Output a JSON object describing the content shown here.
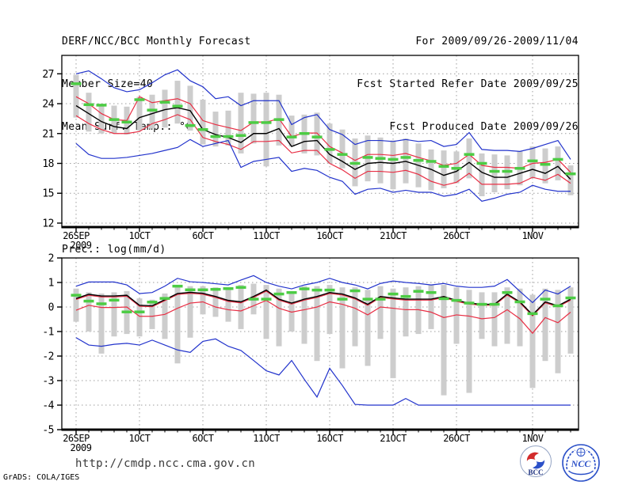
{
  "header": {
    "title": "DERF/NCC/BCC Monthly Forecast",
    "member_size": "Member Size=40",
    "var_label": "Mean Surf. Temp.: °C",
    "valid_range": "For 2009/09/26-2009/11/04",
    "refer_date": "Fcst Started Refer Date 2009/09/25",
    "produced_date": "Fcst Produced Date 2009/09/26"
  },
  "footer": {
    "url": "http://cmdp.ncc.cma.gov.cn",
    "credit": "GrADS: COLA/IGES",
    "bcc_label": "BCC",
    "ncc_label": "NCC"
  },
  "colors": {
    "minmax_line": "#2233cc",
    "spread_line": "#e82e44",
    "mean_line": "#000000",
    "obs_dash": "#4ccc44",
    "spread_bar": "#cdcdcd",
    "grid": "#9e9e9e"
  },
  "chart_data": [
    {
      "type": "line",
      "title": "Mean Surf. Temp.: °C",
      "panel_title": "",
      "ylim": [
        11.6,
        28.85
      ],
      "yticks": [
        27,
        24,
        21,
        18,
        15,
        12
      ],
      "grid": "dotted",
      "x_count": 40,
      "x_start_date": "26SEP2009",
      "x_end_date": "4NOV2009",
      "xticks": [
        {
          "i": 0,
          "label": "26SEP",
          "sub": "2009"
        },
        {
          "i": 5,
          "label": "1OCT"
        },
        {
          "i": 10,
          "label": "6OCT"
        },
        {
          "i": 15,
          "label": "11OCT"
        },
        {
          "i": 20,
          "label": "16OCT"
        },
        {
          "i": 25,
          "label": "21OCT"
        },
        {
          "i": 30,
          "label": "26OCT"
        },
        {
          "i": 36,
          "label": "1NOV"
        }
      ],
      "series": [
        {
          "name": "ensemble-max",
          "color": "#2233cc",
          "width": 1.2,
          "values": [
            27.0,
            27.3,
            26.5,
            25.6,
            25.2,
            25.4,
            26.1,
            26.9,
            27.4,
            26.3,
            25.7,
            24.5,
            24.7,
            23.8,
            24.3,
            24.3,
            24.3,
            21.9,
            22.6,
            22.9,
            21.4,
            20.9,
            19.9,
            20.3,
            20.3,
            20.2,
            20.4,
            20.2,
            20.3,
            19.7,
            19.9,
            21.1,
            19.4,
            19.3,
            19.3,
            19.2,
            19.5,
            19.9,
            20.3,
            18.4
          ]
        },
        {
          "name": "ensemble-upper",
          "color": "#e82e44",
          "width": 1.2,
          "values": [
            24.7,
            24.0,
            23.0,
            22.4,
            22.3,
            24.7,
            24.1,
            24.3,
            24.5,
            24.0,
            22.3,
            21.9,
            21.6,
            21.3,
            22.15,
            22.15,
            22.5,
            20.7,
            21.05,
            21.05,
            19.7,
            19.05,
            18.3,
            18.9,
            18.9,
            18.8,
            19.0,
            18.6,
            18.25,
            17.8,
            18.0,
            18.9,
            17.8,
            17.6,
            17.6,
            17.5,
            18.0,
            18.1,
            18.4,
            17.1
          ]
        },
        {
          "name": "ensemble-lower",
          "color": "#e82e44",
          "width": 1.2,
          "values": [
            22.8,
            22.0,
            21.4,
            21.0,
            21.0,
            21.2,
            22.0,
            22.4,
            22.9,
            22.4,
            20.6,
            20.2,
            19.9,
            19.4,
            20.2,
            20.2,
            20.3,
            19.05,
            19.3,
            19.3,
            18.0,
            17.35,
            16.5,
            17.2,
            17.2,
            17.1,
            17.3,
            16.9,
            16.2,
            15.8,
            16.1,
            17.0,
            15.9,
            15.9,
            15.9,
            16.0,
            16.6,
            16.3,
            16.9,
            16.0
          ]
        },
        {
          "name": "ensemble-min",
          "color": "#2233cc",
          "width": 1.2,
          "values": [
            20.0,
            18.9,
            18.5,
            18.5,
            18.6,
            18.8,
            19.0,
            19.3,
            19.6,
            20.4,
            19.7,
            20.0,
            20.3,
            17.6,
            18.2,
            18.4,
            18.6,
            17.2,
            17.5,
            17.3,
            16.6,
            16.2,
            14.9,
            15.4,
            15.5,
            15.1,
            15.3,
            15.1,
            15.1,
            14.7,
            14.9,
            15.4,
            14.2,
            14.5,
            14.9,
            15.1,
            15.8,
            15.4,
            15.2,
            15.2
          ]
        },
        {
          "name": "ensemble-mean",
          "color": "#000000",
          "width": 1.4,
          "values": [
            23.8,
            23.0,
            22.2,
            21.7,
            21.5,
            22.6,
            23.0,
            23.4,
            23.6,
            23.3,
            21.4,
            20.9,
            20.6,
            20.1,
            21.0,
            21.0,
            21.5,
            19.7,
            20.2,
            20.3,
            18.9,
            18.2,
            17.4,
            18.0,
            18.1,
            18.0,
            18.2,
            17.8,
            17.4,
            16.8,
            17.2,
            18.1,
            17.1,
            16.6,
            16.6,
            17.0,
            17.4,
            17.0,
            17.7,
            16.4
          ]
        }
      ],
      "obs_dashes": {
        "name": "obs-climatology-dash",
        "color": "#4ccc44",
        "values": [
          26.0,
          23.9,
          23.85,
          22.4,
          22.15,
          24.4,
          23.35,
          24.15,
          23.75,
          21.8,
          21.4,
          20.7,
          20.7,
          20.8,
          22.1,
          22.1,
          22.4,
          20.65,
          21.0,
          20.65,
          19.4,
          18.9,
          18.0,
          18.6,
          18.5,
          18.4,
          18.6,
          18.3,
          18.2,
          17.7,
          17.5,
          18.9,
          18.0,
          17.2,
          17.2,
          17.5,
          18.25,
          17.9,
          18.4,
          16.95
        ]
      },
      "spread_bars": {
        "name": "ensemble-spread-bar",
        "color": "#cdcdcd",
        "ranges": [
          [
            22.6,
            26.9
          ],
          [
            21.2,
            25.1
          ],
          [
            21.0,
            23.9
          ],
          [
            21.0,
            23.8
          ],
          [
            20.9,
            23.7
          ],
          [
            21.3,
            24.7
          ],
          [
            21.5,
            24.9
          ],
          [
            21.6,
            25.4
          ],
          [
            22.0,
            26.3
          ],
          [
            21.3,
            25.8
          ],
          [
            19.9,
            24.4
          ],
          [
            19.7,
            23.2
          ],
          [
            19.8,
            23.3
          ],
          [
            19.0,
            25.1
          ],
          [
            20.0,
            25.0
          ],
          [
            17.7,
            25.1
          ],
          [
            19.8,
            24.9
          ],
          [
            19.7,
            22.8
          ],
          [
            19.0,
            22.9
          ],
          [
            18.8,
            23.1
          ],
          [
            18.0,
            22.0
          ],
          [
            17.5,
            21.4
          ],
          [
            15.7,
            20.5
          ],
          [
            16.2,
            20.8
          ],
          [
            16.0,
            20.6
          ],
          [
            15.4,
            20.3
          ],
          [
            16.0,
            20.5
          ],
          [
            15.6,
            20.0
          ],
          [
            15.3,
            19.4
          ],
          [
            15.5,
            19.3
          ],
          [
            16.0,
            19.2
          ],
          [
            16.5,
            20.5
          ],
          [
            14.7,
            19.0
          ],
          [
            15.1,
            18.9
          ],
          [
            15.4,
            18.8
          ],
          [
            15.8,
            19.2
          ],
          [
            16.5,
            19.7
          ],
          [
            16.0,
            19.5
          ],
          [
            16.3,
            19.7
          ],
          [
            14.8,
            17.8
          ]
        ]
      }
    },
    {
      "type": "line",
      "title": "Prec.: log(mm/d)",
      "panel_title": "Prec.: log(mm/d)",
      "ylim": [
        -5,
        2
      ],
      "yticks": [
        2,
        1,
        0,
        -1,
        -2,
        -3,
        -4,
        -5
      ],
      "grid": "dotted",
      "x_count": 40,
      "x_start_date": "26SEP2009",
      "x_end_date": "4NOV2009",
      "xticks": [
        {
          "i": 0,
          "label": "26SEP",
          "sub": "2009"
        },
        {
          "i": 5,
          "label": "1OCT"
        },
        {
          "i": 10,
          "label": "6OCT"
        },
        {
          "i": 15,
          "label": "11OCT"
        },
        {
          "i": 20,
          "label": "16OCT"
        },
        {
          "i": 25,
          "label": "21OCT"
        },
        {
          "i": 30,
          "label": "26OCT"
        },
        {
          "i": 36,
          "label": "1NOV"
        }
      ],
      "series": [
        {
          "name": "ensemble-max",
          "color": "#2233cc",
          "width": 1.2,
          "values": [
            0.85,
            1.02,
            1.02,
            1.02,
            0.9,
            0.55,
            0.59,
            0.85,
            1.17,
            1.03,
            1.0,
            0.95,
            0.9,
            1.1,
            1.28,
            1.0,
            0.85,
            0.74,
            0.9,
            1.0,
            1.17,
            1.0,
            0.9,
            0.74,
            0.96,
            1.06,
            1.0,
            0.96,
            0.9,
            0.96,
            0.85,
            0.8,
            0.8,
            0.85,
            1.12,
            0.64,
            0.18,
            0.69,
            0.53,
            0.85
          ]
        },
        {
          "name": "ensemble-upper",
          "color": "#e82e44",
          "width": 1.2,
          "values": [
            0.31,
            0.48,
            0.41,
            0.41,
            0.44,
            0.03,
            0.01,
            0.26,
            0.51,
            0.56,
            0.52,
            0.39,
            0.23,
            0.17,
            0.39,
            0.65,
            0.28,
            0.12,
            0.28,
            0.39,
            0.55,
            0.49,
            0.33,
            0.07,
            0.39,
            0.33,
            0.28,
            0.28,
            0.28,
            0.39,
            0.23,
            0.12,
            0.07,
            0.07,
            0.49,
            0.17,
            -0.36,
            0.17,
            0.01,
            0.28
          ]
        },
        {
          "name": "ensemble-lower",
          "color": "#e82e44",
          "width": 1.2,
          "values": [
            -0.13,
            0.07,
            -0.02,
            -0.02,
            0.0,
            -0.38,
            -0.38,
            -0.3,
            -0.05,
            0.16,
            0.21,
            0.0,
            -0.11,
            -0.16,
            0.05,
            0.27,
            -0.05,
            -0.21,
            -0.11,
            0.0,
            0.21,
            0.11,
            -0.05,
            -0.32,
            0.0,
            -0.05,
            -0.11,
            -0.11,
            -0.21,
            -0.43,
            -0.32,
            -0.37,
            -0.48,
            -0.43,
            -0.11,
            -0.48,
            -1.07,
            -0.43,
            -0.64,
            -0.21
          ]
        },
        {
          "name": "ensemble-min",
          "color": "#2233cc",
          "width": 1.2,
          "values": [
            -1.25,
            -1.55,
            -1.6,
            -1.52,
            -1.48,
            -1.55,
            -1.35,
            -1.55,
            -1.75,
            -1.85,
            -1.4,
            -1.3,
            -1.6,
            -1.77,
            -2.18,
            -2.6,
            -2.77,
            -2.18,
            -2.95,
            -3.67,
            -2.5,
            -3.2,
            -3.97,
            -4.0,
            -4.0,
            -4.0,
            -3.73,
            -4.0,
            -4.0,
            -4.0,
            -4.0,
            -4.0,
            -4.0,
            -4.0,
            -4.0,
            -4.0,
            -4.0,
            -4.0,
            -4.0,
            -4.0
          ]
        },
        {
          "name": "ensemble-mean",
          "color": "#000000",
          "width": 1.4,
          "values": [
            0.35,
            0.52,
            0.45,
            0.45,
            0.48,
            0.07,
            0.05,
            0.3,
            0.55,
            0.6,
            0.56,
            0.43,
            0.27,
            0.21,
            0.43,
            0.69,
            0.32,
            0.16,
            0.32,
            0.43,
            0.59,
            0.53,
            0.37,
            0.11,
            0.43,
            0.37,
            0.32,
            0.32,
            0.32,
            0.43,
            0.27,
            0.16,
            0.11,
            0.11,
            0.53,
            0.21,
            -0.32,
            0.21,
            0.05,
            0.32
          ]
        }
      ],
      "obs_dashes": {
        "name": "obs-climatology-dash",
        "color": "#4ccc44",
        "values": [
          0.48,
          0.24,
          0.13,
          0.28,
          -0.2,
          -0.2,
          0.2,
          0.35,
          0.85,
          0.7,
          0.7,
          0.72,
          0.75,
          0.8,
          0.32,
          0.32,
          0.53,
          0.59,
          0.74,
          0.69,
          0.69,
          0.32,
          0.66,
          0.32,
          0.32,
          0.53,
          0.43,
          0.64,
          0.59,
          0.34,
          0.27,
          0.16,
          0.11,
          0.11,
          0.59,
          0.21,
          -0.27,
          0.32,
          0.05,
          0.37
        ]
      },
      "spread_bars": {
        "name": "ensemble-spread-bar",
        "color": "#cdcdcd",
        "ranges": [
          [
            -0.6,
            0.75
          ],
          [
            -1.0,
            0.6
          ],
          [
            -1.9,
            0.55
          ],
          [
            -1.2,
            0.6
          ],
          [
            -1.1,
            0.65
          ],
          [
            -1.2,
            0.35
          ],
          [
            -0.9,
            0.3
          ],
          [
            -1.3,
            0.55
          ],
          [
            -2.3,
            0.8
          ],
          [
            -1.25,
            0.85
          ],
          [
            -0.3,
            0.85
          ],
          [
            -0.4,
            0.8
          ],
          [
            -0.6,
            0.8
          ],
          [
            -0.9,
            0.9
          ],
          [
            -0.3,
            0.95
          ],
          [
            -1.3,
            0.9
          ],
          [
            -1.6,
            0.75
          ],
          [
            -1.0,
            0.6
          ],
          [
            -1.5,
            0.85
          ],
          [
            -2.2,
            0.85
          ],
          [
            -1.1,
            0.9
          ],
          [
            -2.5,
            0.8
          ],
          [
            -1.6,
            0.8
          ],
          [
            -2.4,
            0.7
          ],
          [
            -1.3,
            0.85
          ],
          [
            -2.9,
            0.75
          ],
          [
            -1.2,
            0.8
          ],
          [
            -1.1,
            0.85
          ],
          [
            -0.9,
            0.9
          ],
          [
            -3.6,
            0.9
          ],
          [
            -1.5,
            0.8
          ],
          [
            -3.5,
            0.7
          ],
          [
            -1.3,
            0.6
          ],
          [
            -1.6,
            0.6
          ],
          [
            -1.5,
            0.8
          ],
          [
            -1.6,
            0.75
          ],
          [
            -3.3,
            0.5
          ],
          [
            -2.2,
            0.75
          ],
          [
            -2.7,
            0.7
          ],
          [
            -1.9,
            0.8
          ]
        ]
      }
    }
  ]
}
